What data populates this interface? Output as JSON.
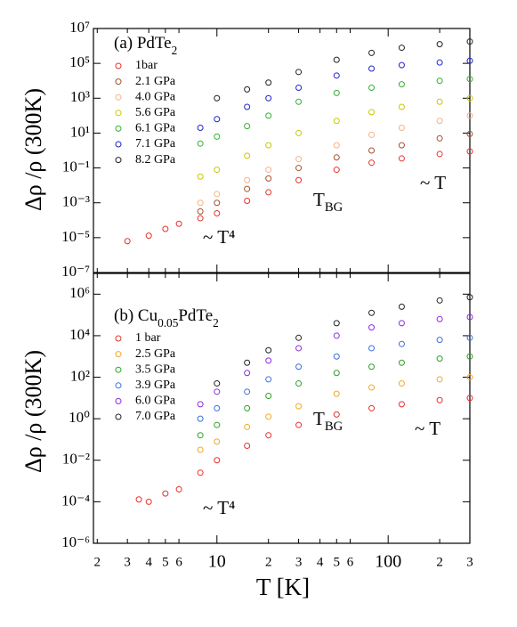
{
  "chart_data": [
    {
      "type": "scatter",
      "xscale": "log",
      "yscale": "log",
      "panel_label_parts": [
        "(a) PdTe",
        "2"
      ],
      "y_label": "Δρ /ρ (300K)",
      "xlim": [
        1.9,
        300
      ],
      "ylim": [
        1e-07,
        10000000.0
      ],
      "yticks": [
        {
          "value": 10000000.0,
          "label": "10⁷"
        },
        {
          "value": 100000.0,
          "label": "10⁵"
        },
        {
          "value": 1000.0,
          "label": "10³"
        },
        {
          "value": 10,
          "label": "10¹"
        },
        {
          "value": 0.1,
          "label": "10⁻¹"
        },
        {
          "value": 0.001,
          "label": "10⁻³"
        },
        {
          "value": 1e-05,
          "label": "10⁻⁵"
        },
        {
          "value": 1e-07,
          "label": "10⁻⁷"
        }
      ],
      "legend": "upper left",
      "annotations": [
        {
          "parts": [
            "~ T⁴"
          ]
        },
        {
          "parts": [
            "T",
            "BG"
          ]
        },
        {
          "parts": [
            "~ T"
          ]
        }
      ],
      "series": [
        {
          "name": "1bar",
          "color": "#e8302a",
          "x": [
            3,
            4,
            5,
            6,
            8,
            10,
            15,
            20,
            30,
            50,
            80,
            120,
            200,
            300
          ],
          "values": [
            6.3e-06,
            1.3e-05,
            3.2e-05,
            6.3e-05,
            0.00013,
            0.00025,
            0.0013,
            0.004,
            0.02,
            0.079,
            0.2,
            0.35,
            0.63,
            0.89
          ]
        },
        {
          "name": "2.1 GPa",
          "color": "#a0522d",
          "x": [
            8,
            10,
            15,
            20,
            30,
            50,
            80,
            120,
            200,
            300
          ],
          "values": [
            0.00032,
            0.001,
            0.0063,
            0.025,
            0.1,
            0.4,
            1,
            2,
            5,
            8.9
          ]
        },
        {
          "name": "4.0 GPa",
          "color": "#f5b183",
          "x": [
            8,
            10,
            15,
            20,
            30,
            50,
            80,
            120,
            200,
            300
          ],
          "values": [
            0.001,
            0.0032,
            0.02,
            0.079,
            0.32,
            2,
            7.9,
            20,
            50,
            100
          ]
        },
        {
          "name": "5.6 GPa",
          "color": "#c9c800",
          "x": [
            8,
            10,
            15,
            20,
            30,
            50,
            80,
            120,
            200,
            300
          ],
          "values": [
            0.032,
            0.079,
            0.5,
            2,
            10,
            50,
            160,
            320,
            630,
            1000
          ]
        },
        {
          "name": "6.1 GPa",
          "color": "#33b033",
          "x": [
            8,
            10,
            15,
            20,
            30,
            50,
            80,
            120,
            200,
            300
          ],
          "values": [
            2.5,
            6.3,
            25,
            100,
            630,
            2000,
            4000,
            6300,
            10000,
            12600
          ]
        },
        {
          "name": "7.1 GPa",
          "color": "#2323c8",
          "x": [
            8,
            10,
            15,
            20,
            30,
            50,
            80,
            120,
            200,
            300
          ],
          "values": [
            20,
            63,
            320,
            1000,
            4000,
            20000,
            50000,
            79000,
            112000,
            141000
          ]
        },
        {
          "name": "8.2 GPa",
          "color": "#222222",
          "x": [
            10,
            15,
            20,
            30,
            50,
            80,
            120,
            200,
            300
          ],
          "values": [
            1000,
            3200,
            7900,
            32000,
            160000,
            400000,
            790000,
            1260000,
            1780000
          ]
        }
      ]
    },
    {
      "type": "scatter",
      "xscale": "log",
      "yscale": "log",
      "panel_label_parts": [
        "(b) Cu",
        "0.05",
        "PdTe",
        "2"
      ],
      "y_label": "Δρ /ρ (300K)",
      "x_label": "T [K]",
      "xlim": [
        1.9,
        300
      ],
      "ylim": [
        1e-06,
        10000000.0
      ],
      "xticks": [
        2,
        3,
        4,
        5,
        6,
        10,
        {
          "value": 20,
          "label": "2"
        },
        {
          "value": 30,
          "label": "3"
        },
        {
          "value": 40,
          "label": "4"
        },
        {
          "value": 50,
          "label": "5"
        },
        {
          "value": 60,
          "label": "6"
        },
        100,
        {
          "value": 200,
          "label": "2"
        },
        {
          "value": 300,
          "label": "3"
        }
      ],
      "yticks": [
        {
          "value": 1000000.0,
          "label": "10⁶"
        },
        {
          "value": 10000.0,
          "label": "10⁴"
        },
        {
          "value": 100,
          "label": "10²"
        },
        {
          "value": 1,
          "label": "10⁰"
        },
        {
          "value": 0.01,
          "label": "10⁻²"
        },
        {
          "value": 0.0001,
          "label": "10⁻⁴"
        },
        {
          "value": 1e-06,
          "label": "10⁻⁶"
        }
      ],
      "legend": "upper left",
      "annotations": [
        {
          "parts": [
            "~ T⁴"
          ]
        },
        {
          "parts": [
            "T",
            "BG"
          ]
        },
        {
          "parts": [
            "~ T"
          ]
        }
      ],
      "series": [
        {
          "name": "1 bar",
          "color": "#e8302a",
          "x": [
            3.5,
            4,
            5,
            6,
            8,
            10,
            15,
            20,
            30,
            50,
            80,
            120,
            200,
            300
          ],
          "values": [
            0.00013,
            0.0001,
            0.00025,
            0.0004,
            0.0025,
            0.01,
            0.05,
            0.16,
            0.5,
            1.6,
            3.2,
            5,
            7.9,
            10
          ]
        },
        {
          "name": "2.5 GPa",
          "color": "#f5a623",
          "x": [
            8,
            10,
            15,
            20,
            30,
            50,
            80,
            120,
            200,
            300
          ],
          "values": [
            0.032,
            0.079,
            0.4,
            1.26,
            4,
            16,
            32,
            50,
            79,
            100
          ]
        },
        {
          "name": "3.5 GPa",
          "color": "#2ca02c",
          "x": [
            8,
            10,
            15,
            20,
            30,
            50,
            80,
            120,
            200,
            300
          ],
          "values": [
            0.16,
            0.5,
            3.2,
            12.6,
            50,
            160,
            320,
            500,
            790,
            1000
          ]
        },
        {
          "name": "3.9 GPa",
          "color": "#3b6fd6",
          "x": [
            8,
            10,
            15,
            20,
            30,
            50,
            80,
            120,
            200,
            300
          ],
          "values": [
            1,
            3.2,
            20,
            79,
            320,
            1000,
            2500,
            4000,
            6300,
            7900
          ]
        },
        {
          "name": "6.0 GPa",
          "color": "#8b2be2",
          "x": [
            8,
            10,
            15,
            20,
            30,
            50,
            80,
            120,
            200,
            300
          ],
          "values": [
            5,
            20,
            160,
            630,
            2500,
            10000,
            25000,
            40000,
            63000,
            79000
          ]
        },
        {
          "name": "7.0 GPa",
          "color": "#222222",
          "x": [
            10,
            15,
            20,
            30,
            50,
            80,
            120,
            200,
            300
          ],
          "values": [
            50,
            500,
            2000,
            7900,
            40000,
            126000,
            250000,
            500000,
            710000
          ]
        }
      ]
    }
  ]
}
